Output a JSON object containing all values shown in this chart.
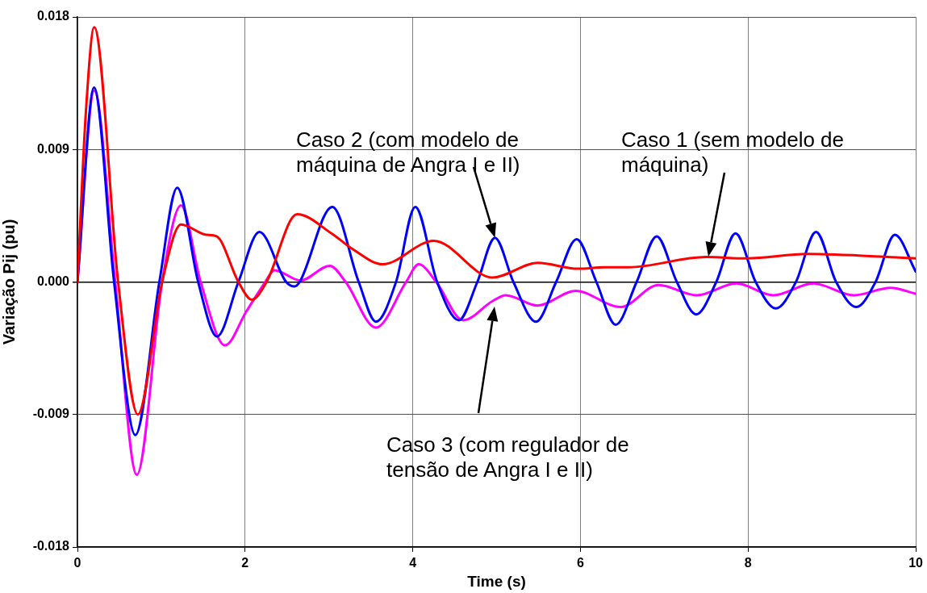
{
  "chart_data": {
    "type": "line",
    "xlabel": "Time (s)",
    "ylabel": "Variação Pij (pu)",
    "xlim": [
      0,
      10
    ],
    "xticks": [
      0,
      2,
      4,
      6,
      8,
      10
    ],
    "ylim": [
      -0.018,
      0.018
    ],
    "yticks": [
      -0.018,
      -0.009,
      {
        "value": 0,
        "label": "0.000"
      },
      0.009,
      0.018
    ],
    "grid": true,
    "series": [
      {
        "color": "#ff0000",
        "x": [
          0,
          0.1,
          0.2,
          0.485,
          0.72,
          1.01,
          1.235,
          1.54,
          1.66,
          1.92,
          2.08,
          2.255,
          2.62,
          3.03,
          3.29,
          3.64,
          4.25,
          4.95,
          5.49,
          5.97,
          6.29,
          6.57,
          7.5,
          7.98,
          8.71,
          9.32,
          10
        ],
        "values": [
          0,
          0.0115,
          0.0173,
          0,
          -0.009,
          0,
          0.0039,
          0.0032,
          0.0031,
          0,
          -0.0012,
          0,
          0.0046,
          0.0033,
          0.0022,
          0.0012,
          0.0028,
          0.0003,
          0.0013,
          0.0009,
          0.001,
          0.001,
          0.0017,
          0.0016,
          0.0019,
          0.0018,
          0.0016
        ]
      },
      {
        "color": "#0000ff",
        "x": [
          0,
          0.198,
          0.437,
          0.69,
          0.977,
          1.19,
          1.44,
          1.665,
          1.92,
          2.17,
          2.49,
          2.59,
          2.65,
          3.04,
          3.355,
          3.56,
          3.8,
          4.03,
          4.29,
          4.55,
          4.77,
          4.98,
          5.2,
          5.47,
          5.71,
          5.955,
          6.19,
          6.42,
          6.67,
          6.91,
          7.15,
          7.38,
          7.62,
          7.85,
          8.09,
          8.33,
          8.57,
          8.81,
          9.05,
          9.29,
          9.52,
          9.75,
          10
        ],
        "values": [
          0,
          0.0132,
          0,
          -0.0104,
          0,
          0.0064,
          0,
          -0.0037,
          0,
          0.0034,
          0,
          -0.0003,
          0,
          0.0051,
          0,
          -0.0027,
          0,
          0.0051,
          0,
          -0.0026,
          0,
          0.003,
          0,
          -0.0027,
          0,
          0.0029,
          0,
          -0.0029,
          0,
          0.0031,
          0,
          -0.0022,
          0,
          0.0033,
          0,
          -0.0018,
          0,
          0.0034,
          0,
          -0.0017,
          0,
          0.0032,
          0.0007
        ]
      },
      {
        "color": "#ff00ff",
        "x": [
          0,
          0.2,
          0.45,
          0.708,
          1.01,
          1.235,
          1.47,
          1.76,
          2.015,
          2.24,
          2.35,
          2.66,
          3.01,
          3.2,
          3.56,
          3.92,
          4.07,
          4.28,
          4.6,
          4.95,
          5.11,
          5.49,
          5.94,
          6.48,
          6.93,
          7.39,
          7.86,
          8.3,
          8.78,
          9.26,
          9.7,
          10
        ],
        "values": [
          0,
          0.013,
          0,
          -0.0131,
          0,
          0.0052,
          0,
          -0.0043,
          -0.002,
          0,
          0.0008,
          0.0001,
          0.0011,
          0,
          -0.0031,
          0,
          0.0012,
          0,
          -0.0026,
          -0.0013,
          -0.0009,
          -0.0016,
          -0.0006,
          -0.0017,
          -0.0002,
          -0.0009,
          -0.0001,
          -0.0009,
          -0.0001,
          -0.0009,
          -0.0004,
          -0.0008
        ]
      }
    ],
    "annotations": [
      {
        "text": "Caso 2 (com modelo de máquina de Angra I e II)",
        "x": 4.98,
        "y": 0.003
      },
      "Caso 1 (sem modelo de máquina)",
      "Caso 3 (com regulador de tensão de Angra I e II)"
    ]
  }
}
